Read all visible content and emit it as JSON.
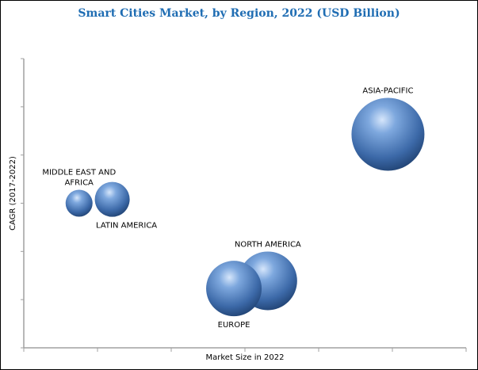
{
  "chart_data": {
    "type": "bubble",
    "title": "Smart Cities Market, by Region, 2022 (USD Billion)",
    "xlabel": "Market Size in 2022",
    "ylabel": "CAGR (2017-2022)",
    "xlim": [
      0,
      6
    ],
    "ylim": [
      0,
      6
    ],
    "grid": false,
    "bubble_color": "#4a7fc4",
    "title_color": "#1f6db3",
    "points": [
      {
        "label": "ASIA-PACIFIC",
        "label_lines": [
          "ASIA-PACIFIC"
        ],
        "x": 4.94,
        "y": 4.43,
        "size": 46,
        "label_pos": "above"
      },
      {
        "label": "MIDDLE EAST AND AFRICA",
        "label_lines": [
          "MIDDLE EAST AND",
          "AFRICA"
        ],
        "x": 0.75,
        "y": 3.0,
        "size": 17,
        "label_pos": "above"
      },
      {
        "label": "LATIN AMERICA",
        "label_lines": [
          "LATIN AMERICA"
        ],
        "x": 1.2,
        "y": 3.08,
        "size": 22,
        "label_pos": "below"
      },
      {
        "label": "NORTH AMERICA",
        "label_lines": [
          "NORTH AMERICA"
        ],
        "x": 3.31,
        "y": 1.39,
        "size": 37,
        "label_pos": "above"
      },
      {
        "label": "EUROPE",
        "label_lines": [
          "EUROPE"
        ],
        "x": 2.85,
        "y": 1.23,
        "size": 35,
        "label_pos": "below"
      }
    ]
  }
}
